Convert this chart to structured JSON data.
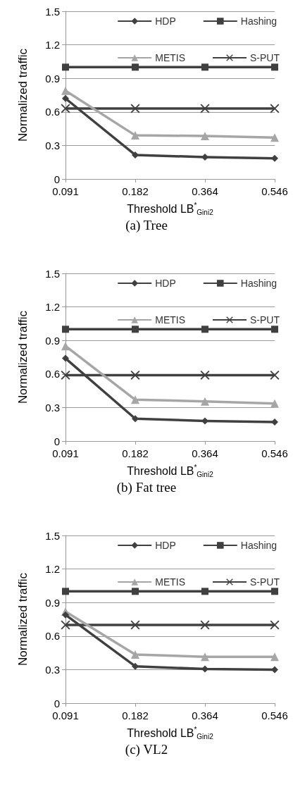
{
  "chart_data": [
    {
      "type": "line",
      "title": "(a) Tree",
      "xlabel": "Threshold LB$^{*}$$_{Gini2}$",
      "ylabel": "Normalized traffic",
      "categories": [
        "0.091",
        "0.182",
        "0.364",
        "0.546"
      ],
      "series": [
        {
          "name": "HDP",
          "color": "#404040",
          "marker": "diamond",
          "values": [
            0.72,
            0.215,
            0.195,
            0.185
          ]
        },
        {
          "name": "Hashing",
          "color": "#404040",
          "marker": "square",
          "values": [
            1.0,
            1.0,
            1.0,
            1.0
          ]
        },
        {
          "name": "METIS",
          "color": "#a6a6a6",
          "marker": "triangle",
          "values": [
            0.79,
            0.39,
            0.385,
            0.37
          ]
        },
        {
          "name": "S-PUT",
          "color": "#404040",
          "marker": "cross",
          "values": [
            0.63,
            0.63,
            0.63,
            0.63
          ]
        }
      ],
      "ylim": [
        0,
        1.5
      ],
      "yticks": [
        0,
        0.3,
        0.6,
        0.9,
        1.2,
        1.5
      ],
      "grid": "y",
      "legend": "top right"
    },
    {
      "type": "line",
      "title": "(b) Fat tree",
      "xlabel": "Threshold LB$^{*}$$_{Gini2}$",
      "ylabel": "Normalized traffic",
      "categories": [
        "0.091",
        "0.182",
        "0.364",
        "0.546"
      ],
      "series": [
        {
          "name": "HDP",
          "color": "#404040",
          "marker": "diamond",
          "values": [
            0.74,
            0.2,
            0.18,
            0.17
          ]
        },
        {
          "name": "Hashing",
          "color": "#404040",
          "marker": "square",
          "values": [
            1.0,
            1.0,
            1.0,
            1.0
          ]
        },
        {
          "name": "METIS",
          "color": "#a6a6a6",
          "marker": "triangle",
          "values": [
            0.85,
            0.37,
            0.355,
            0.335
          ]
        },
        {
          "name": "S-PUT",
          "color": "#404040",
          "marker": "cross",
          "values": [
            0.59,
            0.59,
            0.59,
            0.59
          ]
        }
      ],
      "ylim": [
        0,
        1.5
      ],
      "yticks": [
        0,
        0.3,
        0.6,
        0.9,
        1.2,
        1.5
      ],
      "grid": "y",
      "legend": "top right"
    },
    {
      "type": "line",
      "title": "(c) VL2",
      "xlabel": "Threshold LB$^{*}$$_{Gini2}$",
      "ylabel": "Normalized traffic",
      "categories": [
        "0.091",
        "0.182",
        "0.364",
        "0.546"
      ],
      "series": [
        {
          "name": "HDP",
          "color": "#404040",
          "marker": "diamond",
          "values": [
            0.79,
            0.33,
            0.305,
            0.3
          ]
        },
        {
          "name": "Hashing",
          "color": "#404040",
          "marker": "square",
          "values": [
            1.0,
            1.0,
            1.0,
            1.0
          ]
        },
        {
          "name": "METIS",
          "color": "#a6a6a6",
          "marker": "triangle",
          "values": [
            0.82,
            0.435,
            0.415,
            0.415
          ]
        },
        {
          "name": "S-PUT",
          "color": "#404040",
          "marker": "cross",
          "values": [
            0.7,
            0.7,
            0.7,
            0.7
          ]
        }
      ],
      "ylim": [
        0,
        1.5
      ],
      "yticks": [
        0,
        0.3,
        0.6,
        0.9,
        1.2,
        1.5
      ],
      "grid": "y",
      "legend": "top right"
    }
  ]
}
